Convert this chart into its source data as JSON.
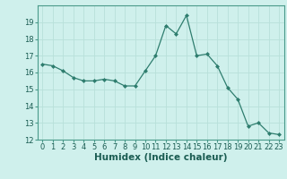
{
  "x": [
    0,
    1,
    2,
    3,
    4,
    5,
    6,
    7,
    8,
    9,
    10,
    11,
    12,
    13,
    14,
    15,
    16,
    17,
    18,
    19,
    20,
    21,
    22,
    23
  ],
  "y": [
    16.5,
    16.4,
    16.1,
    15.7,
    15.5,
    15.5,
    15.6,
    15.5,
    15.2,
    15.2,
    16.1,
    17.0,
    18.8,
    18.3,
    19.4,
    17.0,
    17.1,
    16.4,
    15.1,
    14.4,
    12.8,
    13.0,
    12.4,
    12.3
  ],
  "xlabel": "Humidex (Indice chaleur)",
  "ylim": [
    12,
    20
  ],
  "xlim": [
    -0.5,
    23.5
  ],
  "yticks": [
    12,
    13,
    14,
    15,
    16,
    17,
    18,
    19
  ],
  "xticks": [
    0,
    1,
    2,
    3,
    4,
    5,
    6,
    7,
    8,
    9,
    10,
    11,
    12,
    13,
    14,
    15,
    16,
    17,
    18,
    19,
    20,
    21,
    22,
    23
  ],
  "xtick_labels": [
    "0",
    "1",
    "2",
    "3",
    "4",
    "5",
    "6",
    "7",
    "8",
    "9",
    "10",
    "11",
    "12",
    "13",
    "14",
    "15",
    "16",
    "17",
    "18",
    "19",
    "20",
    "21",
    "22",
    "23"
  ],
  "line_color": "#2e7d6e",
  "marker": "D",
  "marker_size": 2.0,
  "background_color": "#cff0ec",
  "grid_color": "#b8e0da",
  "xlabel_fontsize": 7.5,
  "tick_fontsize": 6.0
}
